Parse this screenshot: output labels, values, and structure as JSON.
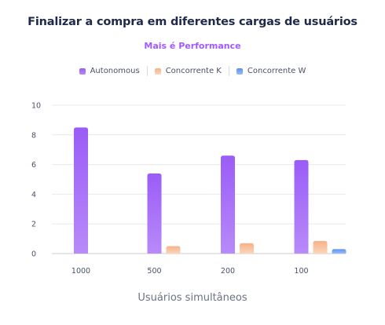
{
  "chart_data": {
    "type": "bar",
    "title": "Finalizar a compra em diferentes cargas de usuários",
    "subtitle": "Mais é Performance",
    "xlabel": "Usuários simultâneos",
    "ylabel": "",
    "categories": [
      "1000",
      "500",
      "200",
      "100"
    ],
    "ylim": [
      0,
      10
    ],
    "yticks": [
      "0",
      "2",
      "4",
      "6",
      "8",
      "10"
    ],
    "grid": true,
    "legend_position": "top-center",
    "series": [
      {
        "name": "Autonomous",
        "values": [
          8.5,
          5.4,
          6.6,
          6.3
        ],
        "color_top": "#9a5cf7",
        "color_bottom": "#b88af9"
      },
      {
        "name": "Concorrente K",
        "values": [
          null,
          0.5,
          0.7,
          0.85
        ],
        "color_top": "#f6b28a",
        "color_bottom": "#fbd5b8"
      },
      {
        "name": "Concorrente W",
        "values": [
          null,
          null,
          null,
          0.3
        ],
        "color_top": "#5b8ff7",
        "color_bottom": "#9cbcfa"
      }
    ]
  }
}
